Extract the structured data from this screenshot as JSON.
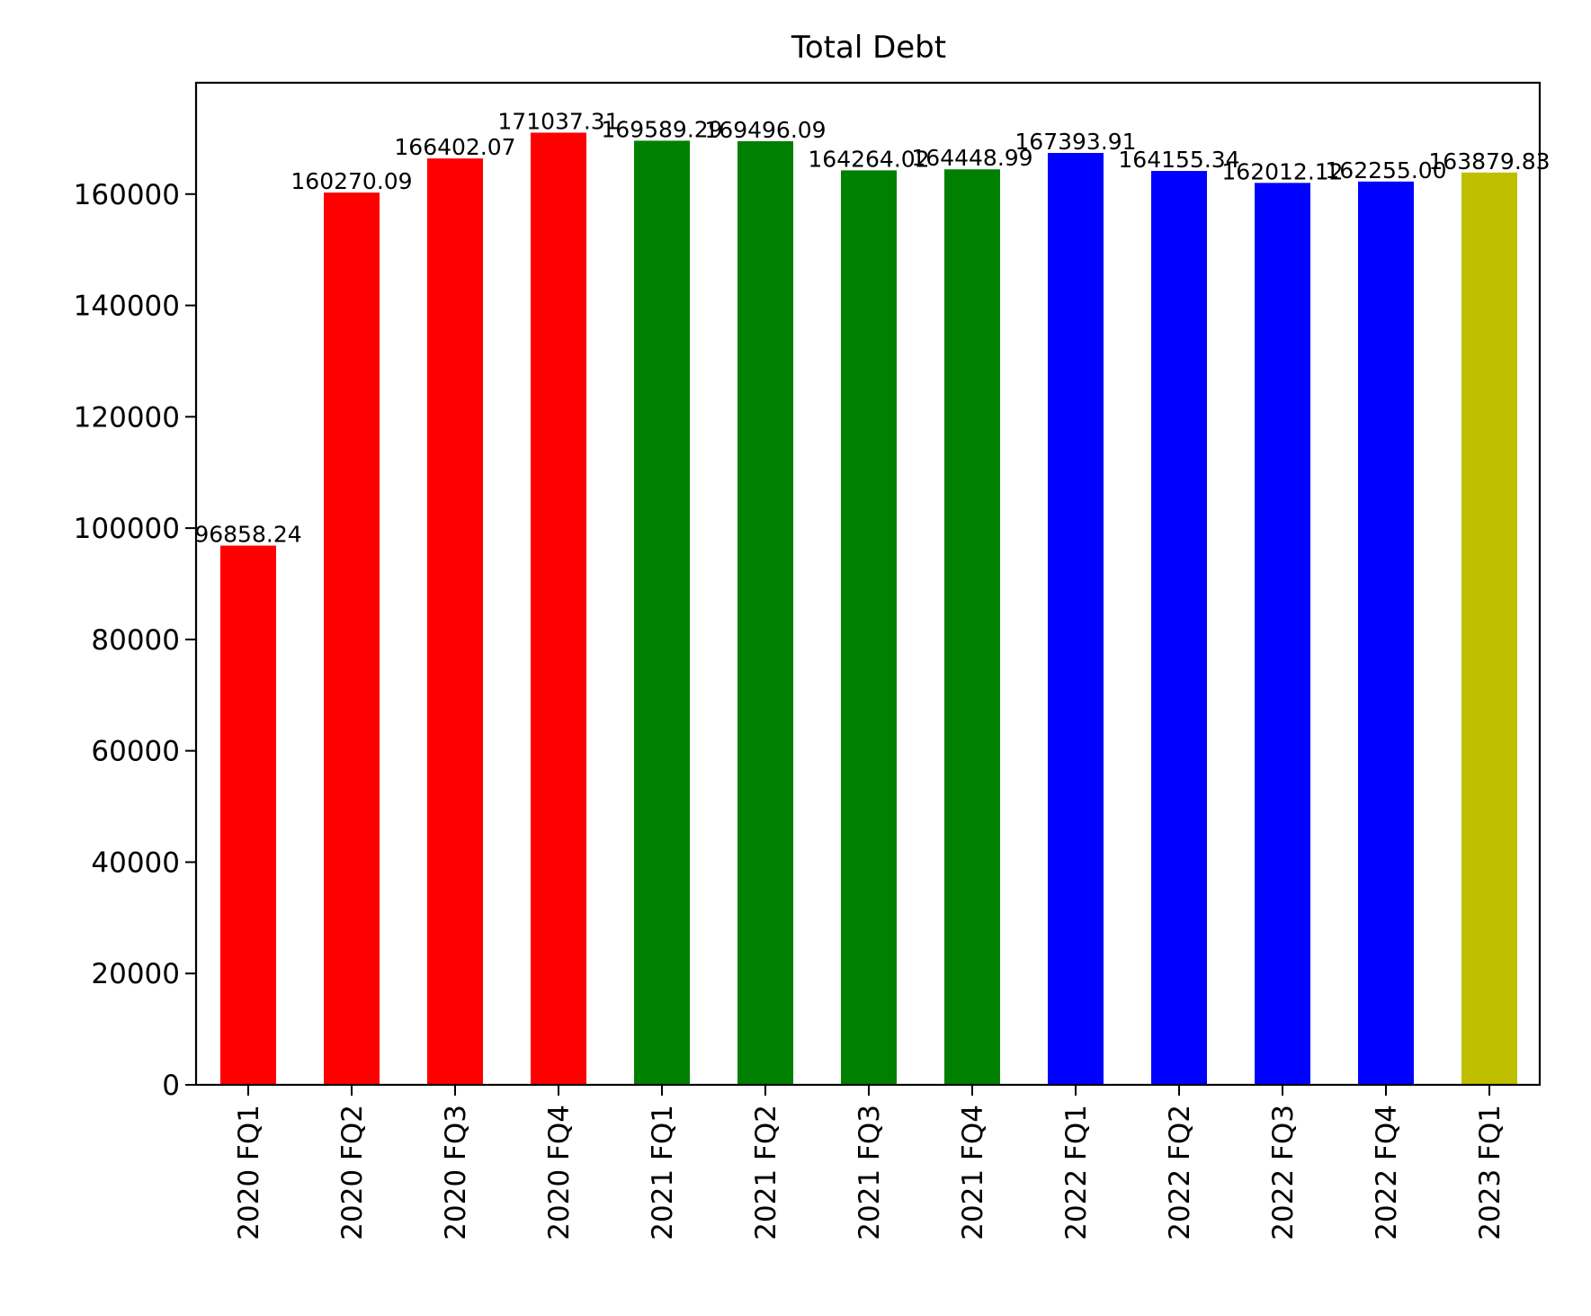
{
  "chart_data": {
    "type": "bar",
    "title": "Total Debt",
    "xlabel": "",
    "ylabel": "",
    "ylim": [
      0,
      180000
    ],
    "yticks": [
      0,
      20000,
      40000,
      60000,
      80000,
      100000,
      120000,
      140000,
      160000
    ],
    "yticklabels": [
      "0",
      "20000",
      "40000",
      "60000",
      "80000",
      "100000",
      "120000",
      "140000",
      "160000"
    ],
    "categories": [
      "2020 FQ1",
      "2020 FQ2",
      "2020 FQ3",
      "2020 FQ4",
      "2021 FQ1",
      "2021 FQ2",
      "2021 FQ3",
      "2021 FQ4",
      "2022 FQ1",
      "2022 FQ2",
      "2022 FQ3",
      "2022 FQ4",
      "2023 FQ1"
    ],
    "values": [
      96858.24,
      160270.09,
      166402.07,
      171037.31,
      169589.29,
      169496.09,
      164264.02,
      164448.99,
      167393.91,
      164155.34,
      162012.12,
      162255.0,
      163879.83
    ],
    "data_labels": [
      "96858.24",
      "160270.09",
      "166402.07",
      "171037.31",
      "169589.29",
      "169496.09",
      "164264.02",
      "164448.99",
      "167393.91",
      "164155.34",
      "162012.12",
      "162255.00",
      "163879.83"
    ],
    "colors": [
      "#ff0000",
      "#ff0000",
      "#ff0000",
      "#ff0000",
      "#008000",
      "#008000",
      "#008000",
      "#008000",
      "#0000ff",
      "#0000ff",
      "#0000ff",
      "#0000ff",
      "#bfbf00"
    ],
    "grid": false,
    "legend": "none"
  }
}
